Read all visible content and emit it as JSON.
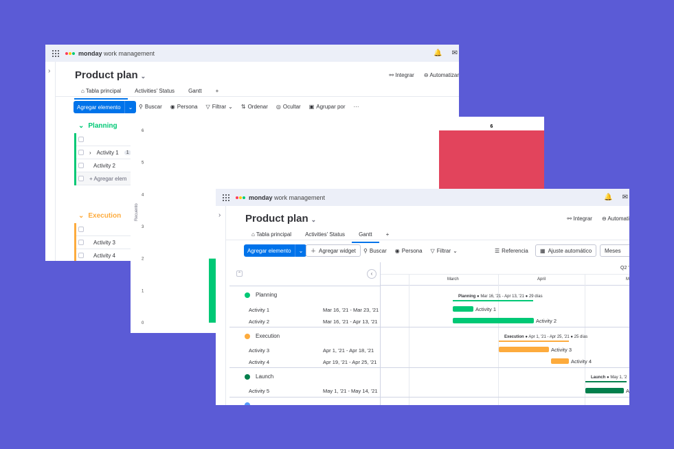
{
  "brand": {
    "name_bold": "monday",
    "name_rest": " work management"
  },
  "colors": {
    "background": "#5b5bd6",
    "primary": "#0073ea",
    "planning": "#00c875",
    "execution": "#fdab3d",
    "launch": "#037f4c",
    "chart_red": "#e2445c"
  },
  "board": {
    "title": "Product plan",
    "tabs": [
      "Tabla principal",
      "Activities' Status",
      "Gantt",
      "+"
    ],
    "actions": {
      "integrar": "Integrar",
      "automatizar": "Automatizar"
    },
    "toolbar": {
      "add_item": "Agregar elemento",
      "buscar": "Buscar",
      "persona": "Persona",
      "filtrar": "Filtrar",
      "ordenar": "Ordenar",
      "ocultar": "Ocultar",
      "agrupar": "Agrupar por",
      "more": "···"
    },
    "groups": [
      {
        "name": "Planning",
        "rows": [
          "Activity 1",
          "Activity 2"
        ],
        "badge": "1",
        "add_row": "+ Agregar elem"
      },
      {
        "name": "Execution",
        "rows": [
          "Activity 3",
          "Activity 4"
        ]
      }
    ]
  },
  "chart_data": {
    "type": "bar",
    "ylabel": "Recuento",
    "yticks": [
      "0",
      "1",
      "2",
      "3",
      "4",
      "5",
      "6"
    ],
    "ylim": [
      0,
      6
    ],
    "series": [
      {
        "values": [
          2
        ],
        "color": "#00c875"
      },
      {
        "values": [
          6
        ],
        "color": "#e2445c",
        "label": "6"
      }
    ]
  },
  "gantt": {
    "title": "Product plan",
    "tabs": [
      "Tabla principal",
      "Activities' Status",
      "Gantt",
      "+"
    ],
    "actions": {
      "integrar": "Integrar",
      "automatizar": "Automati"
    },
    "toolbar": {
      "add_item": "Agregar elemento",
      "add_widget": "Agregar widget",
      "buscar": "Buscar",
      "persona": "Persona",
      "filtrar": "Filtrar",
      "referencia": "Referencia",
      "ajuste": "Ajuste automático",
      "meses": "Meses"
    },
    "quarter": "Q2 '",
    "months": [
      "March",
      "April",
      "M"
    ],
    "groups": [
      {
        "name": "Planning",
        "summary_name": "Planning",
        "summary_range": "Mar 16, '21 - Apr 13, '21",
        "summary_days": "29 días",
        "rows": [
          {
            "name": "Activity 1",
            "dates": "Mar 16, '21 - Mar 23, '21"
          },
          {
            "name": "Activity 2",
            "dates": "Mar 16, '21 - Apr 13, '21"
          }
        ]
      },
      {
        "name": "Execution",
        "summary_name": "Execution",
        "summary_range": "Apr 1, '21 - Apr 25, '21",
        "summary_days": "25 días",
        "rows": [
          {
            "name": "Activity 3",
            "dates": "Apr 1, '21 - Apr 18, '21"
          },
          {
            "name": "Activity 4",
            "dates": "Apr 19, '21 - Apr 25, '21"
          }
        ]
      },
      {
        "name": "Launch",
        "summary_name": "Launch",
        "summary_range": "May 1, '2",
        "rows": [
          {
            "name": "Activity 5",
            "dates": "May 1, '21 - May 14, '21",
            "bar_label": "A"
          }
        ]
      }
    ]
  }
}
